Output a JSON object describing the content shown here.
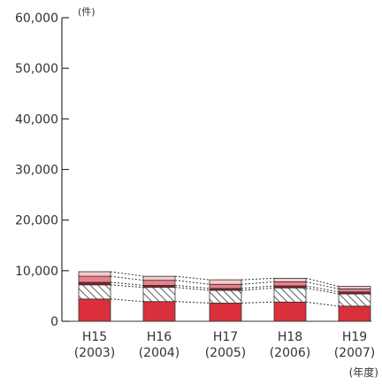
{
  "chart_data": {
    "type": "bar",
    "stacked": true,
    "y_unit": "(件)",
    "x_unit": "(年度)",
    "ylim": [
      0,
      60000
    ],
    "yticks": [
      "0",
      "10,000",
      "20,000",
      "30,000",
      "40,000",
      "50,000",
      "60,000"
    ],
    "ytick_values": [
      0,
      10000,
      20000,
      30000,
      40000,
      50000,
      60000
    ],
    "categories": [
      "H15",
      "H16",
      "H17",
      "H18",
      "H19"
    ],
    "category_years": [
      "(2003)",
      "(2004)",
      "(2005)",
      "(2006)",
      "(2007)"
    ],
    "grid": false,
    "legend": "none",
    "connector_lines": "dotted",
    "series": [
      {
        "values": [
          4400,
          3900,
          3600,
          3800,
          3000
        ],
        "color": "#d9303c",
        "pattern": "solid"
      },
      {
        "values": [
          2800,
          2800,
          2500,
          2800,
          2400
        ],
        "color": "#ffffff",
        "pattern": "hatch"
      },
      {
        "values": [
          500,
          400,
          400,
          400,
          400
        ],
        "color": "#8e1c26",
        "pattern": "solid"
      },
      {
        "values": [
          1200,
          1000,
          800,
          800,
          600
        ],
        "color": "#e8828a",
        "pattern": "solid"
      },
      {
        "values": [
          900,
          800,
          900,
          700,
          500
        ],
        "color": "#f5c9cc",
        "pattern": "solid"
      }
    ]
  }
}
